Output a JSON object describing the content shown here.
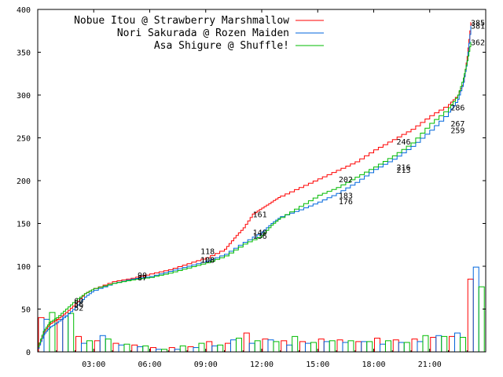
{
  "chart_data": {
    "type": "line",
    "title": "",
    "xlabel": "",
    "ylabel": "",
    "xlim": [
      0,
      24
    ],
    "ylim": [
      0,
      400
    ],
    "grid": false,
    "legend_position": "top-right",
    "x_tick_labels": [
      "03:00",
      "06:00",
      "09:00",
      "12:00",
      "15:00",
      "18:00",
      "21:00"
    ],
    "x_tick_values": [
      3,
      6,
      9,
      12,
      15,
      18,
      21
    ],
    "y_ticks": [
      0,
      50,
      100,
      150,
      200,
      250,
      300,
      350,
      400
    ],
    "series": [
      {
        "name": "Nobue Itou @ Strawberry Marshmallow",
        "color": "#ff0000",
        "cumulative": {
          "x": [
            0,
            0.3,
            0.6,
            1,
            1.5,
            2,
            2.5,
            3,
            4,
            5,
            6,
            7,
            8,
            9,
            10,
            10.5,
            11,
            11.5,
            12,
            12.5,
            13,
            14,
            15,
            16,
            17,
            18,
            19,
            20,
            21,
            22,
            22.5,
            22.8,
            23,
            23.2
          ],
          "y": [
            5,
            22,
            32,
            38,
            46,
            56,
            68,
            74,
            82,
            86,
            91,
            96,
            103,
            110,
            120,
            133,
            145,
            161,
            168,
            175,
            182,
            192,
            202,
            212,
            222,
            236,
            248,
            260,
            276,
            289,
            300,
            315,
            345,
            385
          ]
        },
        "labels": [
          {
            "x": 2.2,
            "y": 60,
            "text": "60"
          },
          {
            "x": 5.6,
            "y": 90,
            "text": "90"
          },
          {
            "x": 9.1,
            "y": 118,
            "text": "118"
          },
          {
            "x": 11.9,
            "y": 161,
            "text": "161"
          },
          {
            "x": 16.5,
            "y": 202,
            "text": "202"
          },
          {
            "x": 19.6,
            "y": 246,
            "text": "246"
          },
          {
            "x": 22.5,
            "y": 286,
            "text": "286"
          },
          {
            "x": 25.2,
            "y": 385,
            "text": "385"
          }
        ],
        "bars": [
          40,
          38,
          0,
          0,
          14,
          0,
          0,
          0,
          10,
          0,
          0,
          0,
          0,
          0,
          0,
          0,
          0,
          0,
          0,
          0,
          0,
          0,
          10,
          0,
          0,
          0,
          0,
          0,
          0,
          0,
          0,
          0,
          0,
          0,
          0,
          0,
          0,
          0,
          0,
          0,
          0,
          23,
          0,
          0,
          0,
          0,
          0,
          0,
          0,
          0,
          0,
          0,
          0,
          0,
          0,
          0,
          0,
          0,
          0,
          0,
          0,
          0,
          0,
          0,
          0,
          0,
          0,
          0,
          0,
          0,
          0,
          0,
          0,
          0,
          0,
          0,
          0,
          0,
          0,
          0,
          0,
          0,
          0,
          0,
          0,
          0,
          0,
          0,
          0,
          0,
          85,
          0
        ]
      },
      {
        "name": "Nori Sakurada @ Rozen Maiden",
        "color": "#0066dd",
        "cumulative": {
          "x": [
            0,
            0.3,
            0.6,
            1,
            1.5,
            2,
            2.5,
            3,
            4,
            5,
            6,
            7,
            8,
            9,
            10,
            11,
            12,
            12.5,
            13,
            14,
            15,
            16,
            17,
            18,
            19,
            20,
            21,
            22,
            22.5,
            22.8,
            23,
            23.2
          ],
          "y": [
            4,
            20,
            28,
            34,
            42,
            52,
            64,
            72,
            80,
            85,
            88,
            94,
            100,
            106,
            114,
            128,
            140,
            150,
            158,
            166,
            175,
            185,
            198,
            213,
            225,
            240,
            259,
            280,
            295,
            315,
            340,
            381
          ]
        },
        "labels": [
          {
            "x": 2.2,
            "y": 52,
            "text": "52"
          },
          {
            "x": 5.6,
            "y": 87,
            "text": "87"
          },
          {
            "x": 9.1,
            "y": 108,
            "text": "108"
          },
          {
            "x": 11.9,
            "y": 140,
            "text": "140"
          },
          {
            "x": 16.5,
            "y": 176,
            "text": "176"
          },
          {
            "x": 19.6,
            "y": 213,
            "text": "213"
          },
          {
            "x": 22.5,
            "y": 259,
            "text": "259"
          },
          {
            "x": 25.2,
            "y": 381,
            "text": "381"
          }
        ],
        "bars": [
          0,
          0,
          0,
          0,
          0,
          0,
          0,
          0,
          0,
          0,
          0,
          0,
          0,
          0,
          0,
          0,
          0,
          0,
          0,
          0,
          0,
          0,
          0,
          0,
          0,
          0,
          0,
          0,
          0,
          0,
          0,
          0,
          0,
          0,
          0,
          0,
          0,
          0,
          0,
          0,
          0,
          0,
          0,
          0,
          0,
          0,
          0,
          0,
          0,
          0,
          0,
          0,
          0,
          0,
          0,
          0,
          0,
          0,
          0,
          0,
          0,
          0,
          0,
          0,
          0,
          0,
          0,
          0,
          0,
          0,
          0,
          0,
          0,
          0,
          0,
          0,
          0,
          0,
          0,
          0,
          0,
          0,
          0,
          0,
          0,
          0,
          0,
          0,
          0,
          0,
          0,
          99
        ]
      },
      {
        "name": "Asa Shigure @ Shuffle!",
        "color": "#00bb00",
        "cumulative": {
          "x": [
            0,
            0.3,
            0.6,
            1,
            1.5,
            2,
            2.5,
            3,
            4,
            5,
            6,
            7,
            8,
            9,
            10,
            11,
            12,
            12.5,
            13,
            14,
            15,
            16,
            17,
            18,
            19,
            20,
            21,
            22,
            22.5,
            22.8,
            23,
            23.2
          ],
          "y": [
            6,
            24,
            34,
            40,
            50,
            60,
            68,
            74,
            80,
            84,
            87,
            92,
            98,
            104,
            112,
            126,
            136,
            148,
            157,
            170,
            183,
            192,
            204,
            216,
            229,
            244,
            267,
            285,
            300,
            320,
            340,
            362
          ]
        },
        "labels": [
          {
            "x": 2.2,
            "y": 56,
            "text": "56"
          },
          {
            "x": 9.1,
            "y": 108,
            "text": "108"
          },
          {
            "x": 11.9,
            "y": 136,
            "text": "136"
          },
          {
            "x": 16.5,
            "y": 183,
            "text": "183"
          },
          {
            "x": 19.6,
            "y": 216,
            "text": "216"
          },
          {
            "x": 22.5,
            "y": 267,
            "text": "267"
          },
          {
            "x": 25.2,
            "y": 362,
            "text": "362"
          }
        ],
        "bars": [
          0,
          0,
          0,
          0,
          0,
          0,
          0,
          0,
          0,
          0,
          0,
          0,
          0,
          0,
          0,
          0,
          0,
          0,
          0,
          0,
          0,
          0,
          0,
          0,
          0,
          0,
          0,
          0,
          0,
          0,
          0,
          0,
          0,
          0,
          0,
          0,
          0,
          0,
          0,
          0,
          0,
          0,
          0,
          0,
          0,
          0,
          0,
          0,
          0,
          0,
          0,
          0,
          0,
          0,
          0,
          0,
          0,
          0,
          0,
          0,
          0,
          0,
          0,
          0,
          0,
          0,
          0,
          0,
          0,
          0,
          0,
          0,
          0,
          0,
          0,
          0,
          0,
          0,
          0,
          0,
          0,
          0,
          0,
          0,
          0,
          0,
          0,
          0,
          0,
          0,
          0,
          76
        ]
      }
    ],
    "hourly_bars": {
      "hours": [
        0,
        1,
        2,
        3,
        4,
        5,
        6,
        7,
        8,
        9,
        10,
        11,
        12,
        13,
        14,
        15,
        16,
        17,
        18,
        19,
        20,
        21,
        22,
        23
      ],
      "red": [
        40,
        38,
        18,
        13,
        10,
        8,
        5,
        5,
        6,
        12,
        10,
        22,
        15,
        13,
        12,
        15,
        14,
        12,
        16,
        14,
        15,
        17,
        18,
        85
      ],
      "blue": [
        38,
        42,
        10,
        19,
        8,
        6,
        3,
        3,
        5,
        7,
        14,
        10,
        14,
        8,
        10,
        12,
        11,
        12,
        9,
        11,
        12,
        19,
        22,
        99
      ],
      "green": [
        46,
        45,
        13,
        15,
        9,
        7,
        3,
        7,
        10,
        8,
        16,
        13,
        12,
        18,
        11,
        13,
        13,
        12,
        13,
        11,
        19,
        18,
        17,
        76
      ]
    }
  }
}
